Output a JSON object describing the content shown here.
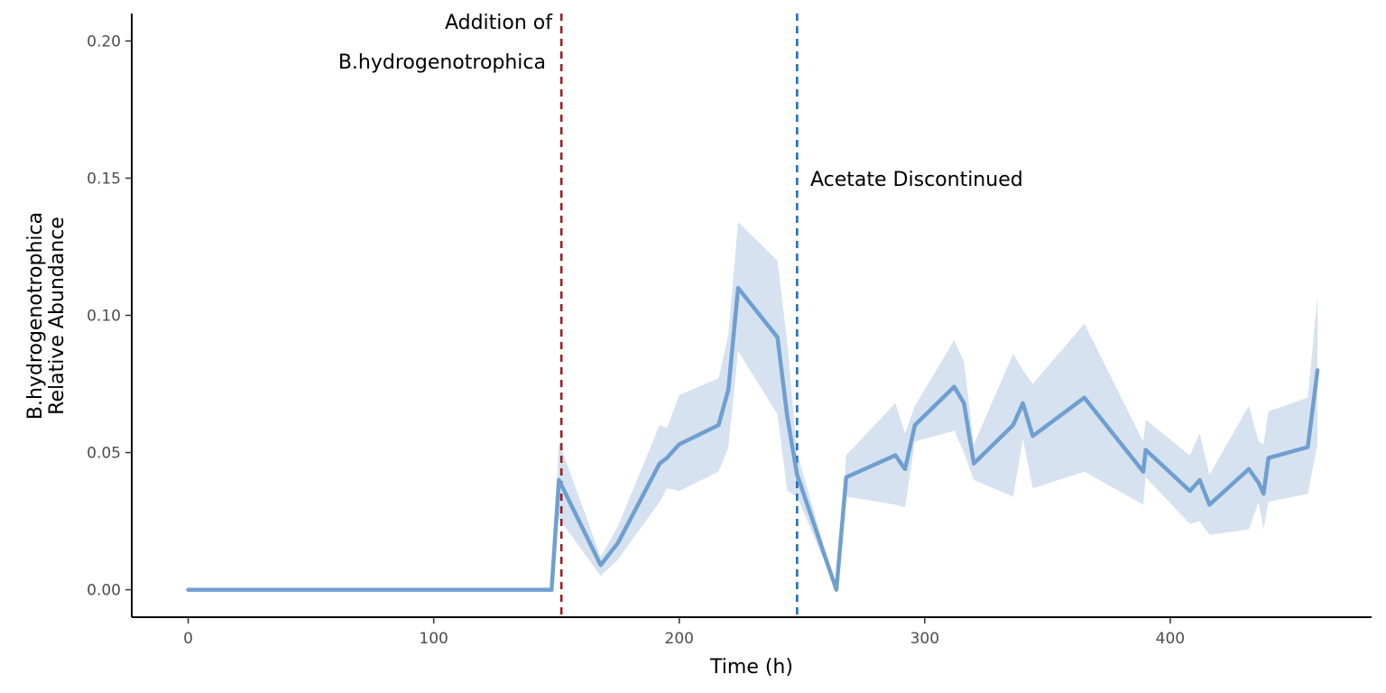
{
  "chart_data": {
    "type": "line",
    "xlabel": "Time (h)",
    "ylabel_lines": [
      "B.hydrogenotrophica",
      "Relative Abundance"
    ],
    "xlim": [
      -23,
      482
    ],
    "ylim": [
      -0.01,
      0.21
    ],
    "x_ticks": [
      0,
      100,
      200,
      300,
      400
    ],
    "x_tick_labels": [
      "0",
      "100",
      "200",
      "300",
      "400"
    ],
    "y_ticks": [
      0.0,
      0.05,
      0.1,
      0.15,
      0.2
    ],
    "y_tick_labels": [
      "0.00",
      "0.05",
      "0.10",
      "0.15",
      "0.20"
    ],
    "grid": false,
    "colors": {
      "line": "#6f9fd0",
      "ribbon": "#d6e2f0",
      "addition_line": "#9b1b24",
      "acetate_line": "#1a6fc0",
      "axis": "#000000",
      "tick_label": "#4d4d4d"
    },
    "series": [
      {
        "x": [
          0,
          48,
          148,
          151,
          168,
          175,
          192,
          195,
          200,
          216,
          220,
          224,
          240,
          244,
          248,
          264,
          268,
          288,
          292,
          296,
          312,
          316,
          320,
          336,
          340,
          344,
          365,
          389,
          390,
          408,
          412,
          416,
          432,
          436,
          438,
          440,
          456,
          460
        ],
        "y": [
          0.0,
          0.0,
          0.0,
          0.04,
          0.009,
          0.017,
          0.046,
          0.048,
          0.053,
          0.06,
          0.073,
          0.11,
          0.092,
          0.063,
          0.042,
          0.0,
          0.041,
          0.049,
          0.044,
          0.06,
          0.074,
          0.068,
          0.046,
          0.06,
          0.068,
          0.056,
          0.07,
          0.043,
          0.051,
          0.036,
          0.04,
          0.031,
          0.044,
          0.039,
          0.035,
          0.048,
          0.052,
          0.08
        ],
        "ymin": [
          0.0,
          0.0,
          0.0,
          0.026,
          0.005,
          0.011,
          0.032,
          0.037,
          0.036,
          0.043,
          0.052,
          0.087,
          0.064,
          0.036,
          0.034,
          0.0,
          0.034,
          0.031,
          0.03,
          0.054,
          0.058,
          0.05,
          0.04,
          0.034,
          0.055,
          0.037,
          0.043,
          0.031,
          0.041,
          0.024,
          0.025,
          0.02,
          0.022,
          0.032,
          0.022,
          0.032,
          0.035,
          0.053
        ],
        "ymax": [
          0.0,
          0.0,
          0.0,
          0.054,
          0.012,
          0.023,
          0.06,
          0.059,
          0.071,
          0.077,
          0.093,
          0.134,
          0.12,
          0.09,
          0.05,
          0.0,
          0.049,
          0.068,
          0.057,
          0.067,
          0.091,
          0.083,
          0.053,
          0.086,
          0.08,
          0.075,
          0.097,
          0.054,
          0.062,
          0.049,
          0.057,
          0.042,
          0.067,
          0.054,
          0.053,
          0.065,
          0.07,
          0.107
        ]
      }
    ],
    "vlines": [
      {
        "x": 152,
        "color": "#9b1b24"
      },
      {
        "x": 248,
        "color": "#1a6fc0"
      }
    ],
    "annotations": [
      {
        "lines": [
          "Addition of",
          "B.hydrogenotrophica"
        ]
      },
      {
        "lines": [
          "Acetate Discontinued"
        ]
      }
    ]
  }
}
